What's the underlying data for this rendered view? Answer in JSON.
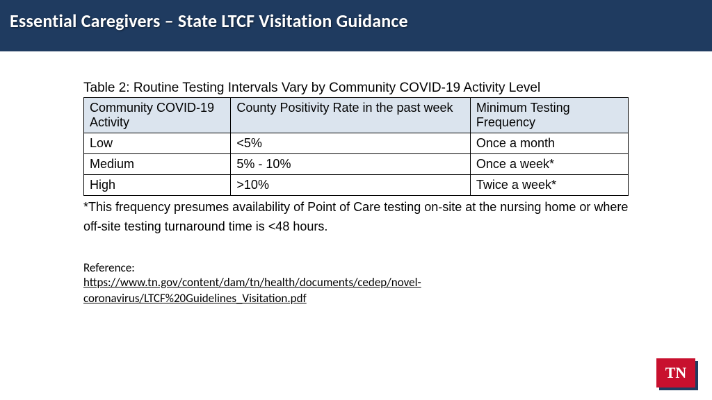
{
  "header": {
    "title": "Essential Caregivers – State LTCF Visitation Guidance"
  },
  "table": {
    "caption": "Table 2: Routine Testing Intervals Vary by Community COVID-19 Activity Level",
    "columns": [
      "Community COVID-19 Activity",
      "County Positivity Rate in the past week",
      "Minimum Testing Frequency"
    ],
    "rows": [
      [
        "Low",
        "<5%",
        "Once a month"
      ],
      [
        "Medium",
        "5% - 10%",
        "Once a week*"
      ],
      [
        "High",
        ">10%",
        "Twice a week*"
      ]
    ]
  },
  "footnote": "*This frequency presumes availability of Point of Care testing on-site at the nursing home or where off-site testing turnaround time is <48 hours.",
  "reference": {
    "label": "Reference:",
    "url": "https://www.tn.gov/content/dam/tn/health/documents/cedep/novel-coronavirus/LTCF%20Guidelines_Visitation.pdf"
  },
  "logo": {
    "text": "TN"
  },
  "styling": {
    "header_bg": "#1f3b60",
    "table_header_bg": "#dbe4ee",
    "logo_bg": "#c8102e",
    "logo_shadow": "#1f3b60"
  }
}
